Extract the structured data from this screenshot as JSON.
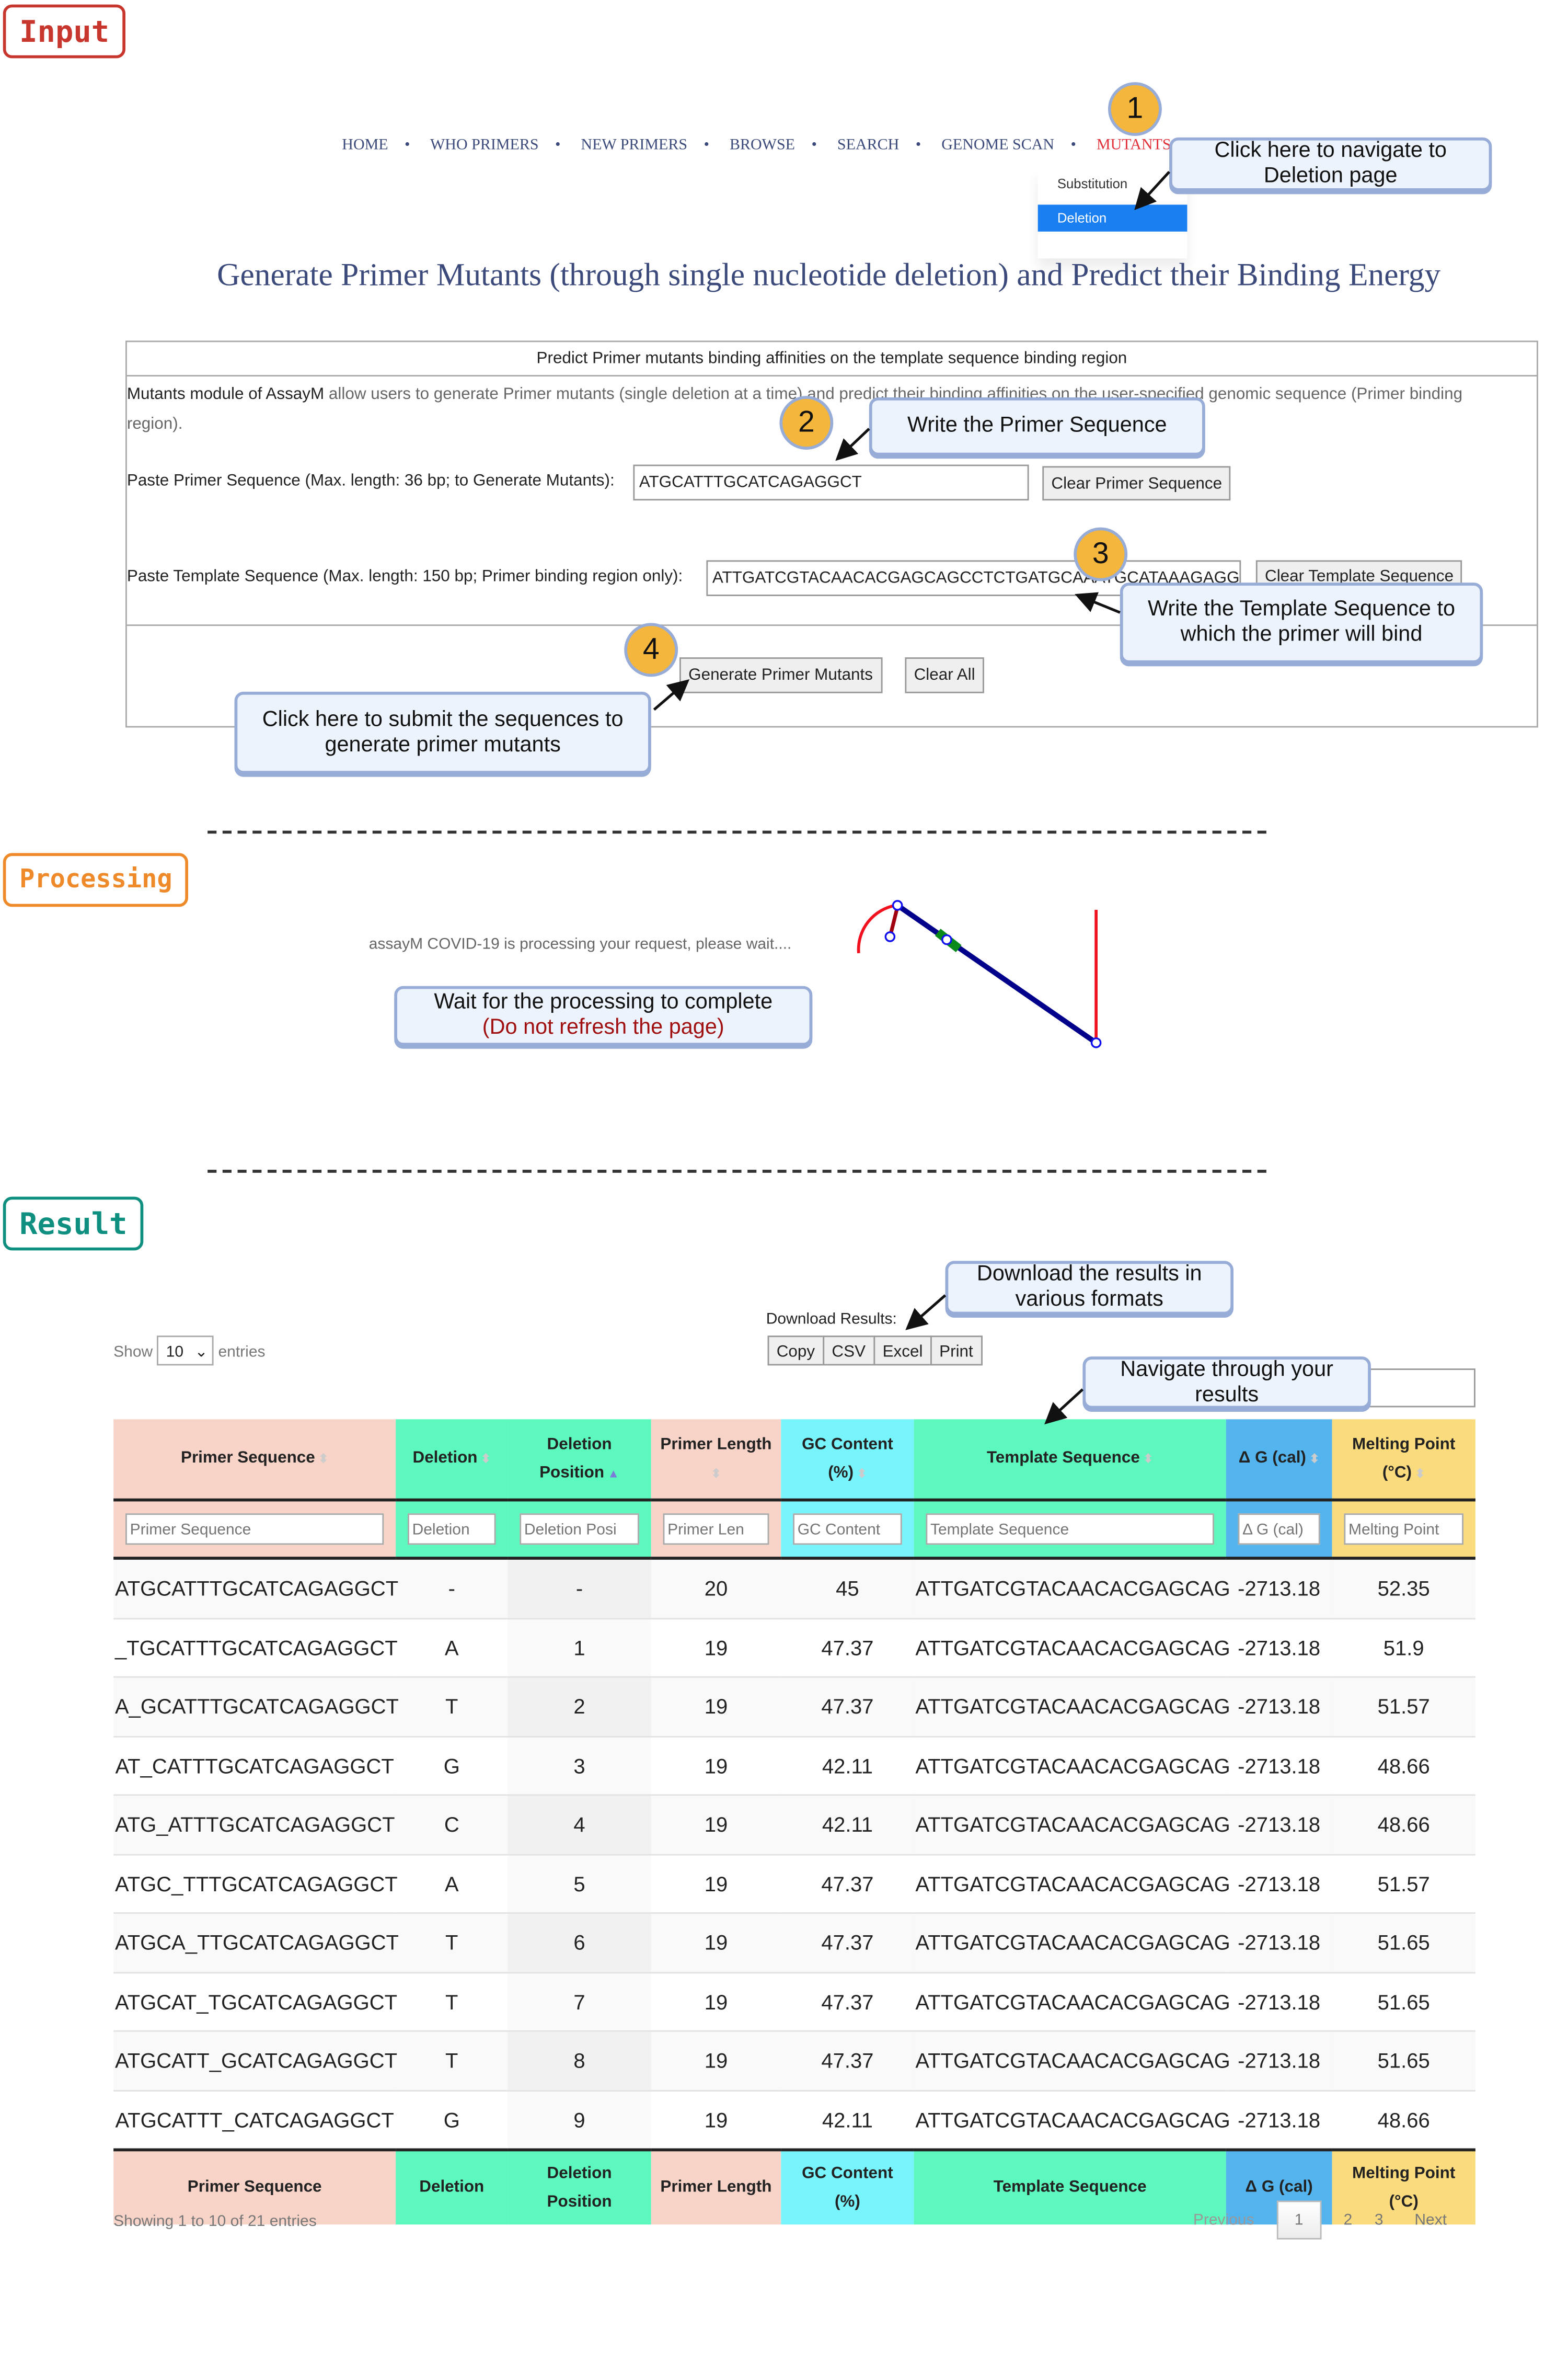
{
  "sections": {
    "input": "Input",
    "processing": "Processing",
    "result": "Result"
  },
  "colors": {
    "input": "#c8372d",
    "processing": "#ee8a2a",
    "result": "#0f8f80",
    "callout_bg": "#edf3fc",
    "step_badge": "#f4b63c",
    "nav_active": "#e0303a",
    "dropdown_active": "#1a7ff0"
  },
  "nav": {
    "items": [
      "HOME",
      "WHO PRIMERS",
      "NEW PRIMERS",
      "BROWSE",
      "SEARCH",
      "GENOME SCAN",
      "MUTANTS"
    ],
    "active": "MUTANTS",
    "dropdown": [
      "Substitution",
      "Deletion"
    ],
    "dropdown_active": "Deletion"
  },
  "page_title": "Generate Primer Mutants (through single nucleotide deletion) and Predict their Binding Energy",
  "form": {
    "header": "Predict Primer mutants binding affinities on the template sequence binding region",
    "desc_bold": "Mutants module of AssayM",
    "desc_rest": " allow users to generate Primer mutants (single deletion at a time) and predict their binding affinities on the user-specified genomic sequence (Primer binding region).",
    "primer_label": "Paste Primer Sequence (Max. length: 36 bp; to Generate Mutants):",
    "primer_value": "ATGCATTTGCATCAGAGGCT",
    "clear_primer": "Clear Primer Sequence",
    "template_label": "Paste Template Sequence (Max. length: 150 bp; Primer binding region only):",
    "template_value": "ATTGATCGTACAACACGAGCAGCCTCTGATGCAAATGCATAAAGAGGACTC",
    "clear_template": "Clear Template Sequence",
    "generate": "Generate Primer Mutants",
    "clear_all": "Clear All"
  },
  "steps": [
    "1",
    "2",
    "3",
    "4"
  ],
  "callouts": {
    "nav": "Click here to navigate to Deletion page",
    "primer": "Write the Primer Sequence",
    "template": "Write the Template Sequence to which the primer will bind",
    "submit": "Click here to submit the sequences to generate primer mutants",
    "wait_line1": "Wait for the processing to complete",
    "wait_line2": "(Do not refresh the page)",
    "download": "Download the results in various formats",
    "navigate": "Navigate through your results"
  },
  "processing_text": "assayM COVID-19 is processing your request, please wait....",
  "results": {
    "show_label": "Show",
    "show_value": "10",
    "entries_label": "entries",
    "download_label": "Download Results:",
    "export_buttons": [
      "Copy",
      "CSV",
      "Excel",
      "Print"
    ],
    "columns": [
      "Primer Sequence",
      "Deletion",
      "Deletion Position",
      "Primer Length",
      "GC Content (%)",
      "Template Sequence",
      "Δ G (cal)",
      "Melting Point (°C)"
    ],
    "filters": [
      "Primer Sequence",
      "Deletion",
      "Deletion Posi",
      "Primer Len",
      "GC Content",
      "Template Sequence",
      "Δ G (cal)",
      "Melting Point"
    ],
    "rows": [
      [
        "ATGCATTTGCATCAGAGGCT",
        "-",
        "-",
        "20",
        "45",
        "ATTGATCGTACAACACGAGCAG",
        "-2713.18",
        "52.35"
      ],
      [
        "_TGCATTTGCATCAGAGGCT",
        "A",
        "1",
        "19",
        "47.37",
        "ATTGATCGTACAACACGAGCAG",
        "-2713.18",
        "51.9"
      ],
      [
        "A_GCATTTGCATCAGAGGCT",
        "T",
        "2",
        "19",
        "47.37",
        "ATTGATCGTACAACACGAGCAG",
        "-2713.18",
        "51.57"
      ],
      [
        "AT_CATTTGCATCAGAGGCT",
        "G",
        "3",
        "19",
        "42.11",
        "ATTGATCGTACAACACGAGCAG",
        "-2713.18",
        "48.66"
      ],
      [
        "ATG_ATTTGCATCAGAGGCT",
        "C",
        "4",
        "19",
        "42.11",
        "ATTGATCGTACAACACGAGCAG",
        "-2713.18",
        "48.66"
      ],
      [
        "ATGC_TTTGCATCAGAGGCT",
        "A",
        "5",
        "19",
        "47.37",
        "ATTGATCGTACAACACGAGCAG",
        "-2713.18",
        "51.57"
      ],
      [
        "ATGCA_TTGCATCAGAGGCT",
        "T",
        "6",
        "19",
        "47.37",
        "ATTGATCGTACAACACGAGCAG",
        "-2713.18",
        "51.65"
      ],
      [
        "ATGCAT_TGCATCAGAGGCT",
        "T",
        "7",
        "19",
        "47.37",
        "ATTGATCGTACAACACGAGCAG",
        "-2713.18",
        "51.65"
      ],
      [
        "ATGCATT_GCATCAGAGGCT",
        "T",
        "8",
        "19",
        "47.37",
        "ATTGATCGTACAACACGAGCAG",
        "-2713.18",
        "51.65"
      ],
      [
        "ATGCATTT_CATCAGAGGCT",
        "G",
        "9",
        "19",
        "42.11",
        "ATTGATCGTACAACACGAGCAG",
        "-2713.18",
        "48.66"
      ]
    ],
    "info": "Showing 1 to 10 of 21 entries",
    "pagination": {
      "previous": "Previous",
      "pages": [
        "1",
        "2",
        "3"
      ],
      "current": "1",
      "next": "Next"
    }
  }
}
